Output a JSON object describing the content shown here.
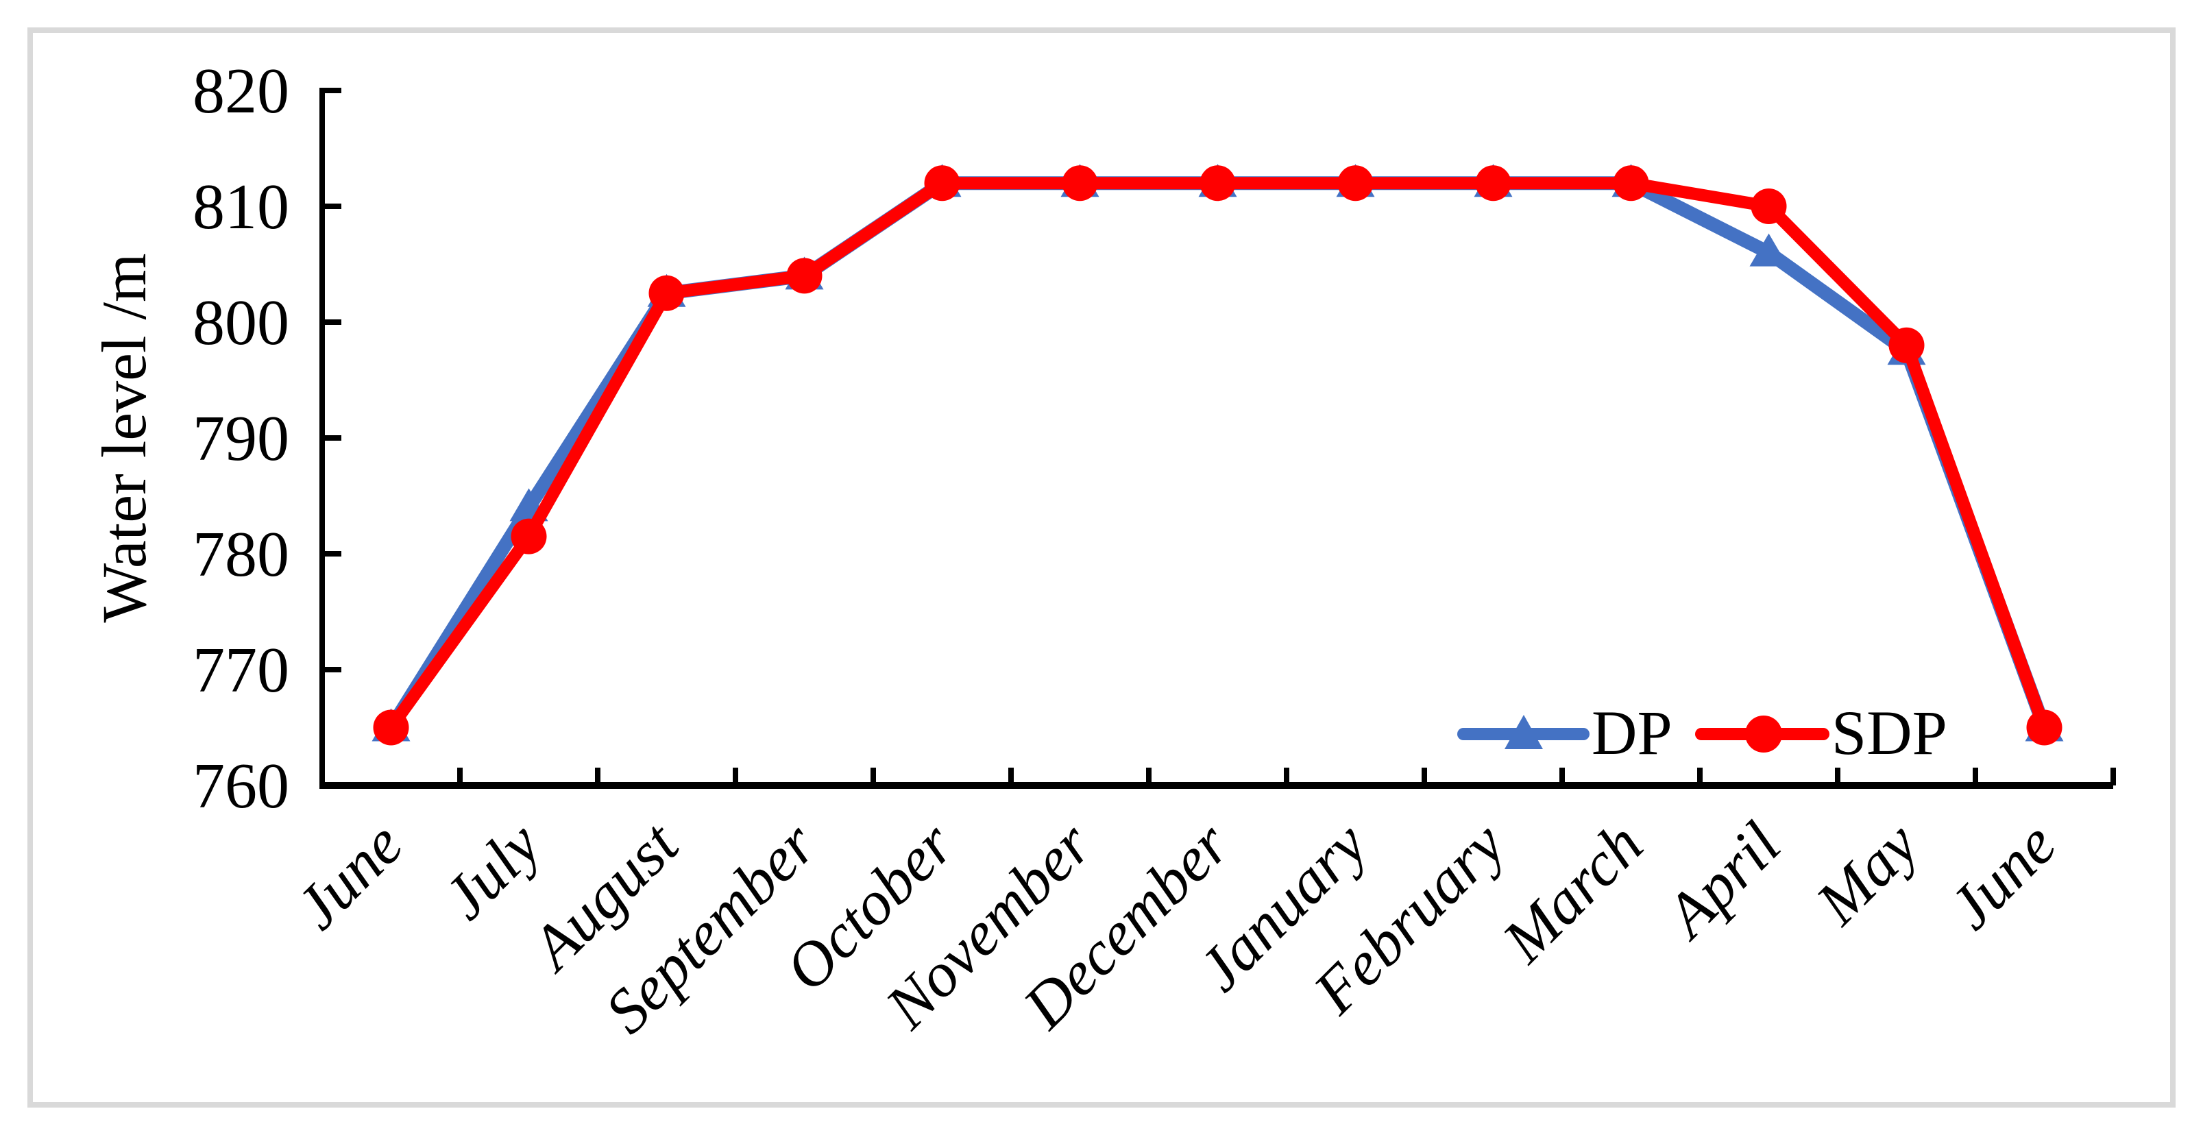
{
  "figure": {
    "background": "#FFFFFF",
    "border_color": "#D9D9D9"
  },
  "chart_data": {
    "type": "line",
    "title": "",
    "xlabel": "",
    "ylabel": "Water level /m",
    "categories": [
      "June",
      "July",
      "August",
      "September",
      "October",
      "November",
      "December",
      "January",
      "February",
      "March",
      "April",
      "May",
      "June"
    ],
    "series": [
      {
        "name": "DP",
        "color": "#4472C4",
        "marker": "triangle",
        "values": [
          765,
          784,
          802.5,
          804,
          812,
          812,
          812,
          812,
          812,
          812,
          806,
          797.5,
          765
        ]
      },
      {
        "name": "SDP",
        "color": "#FF0000",
        "marker": "circle",
        "values": [
          765,
          781.5,
          802.5,
          804,
          812,
          812,
          812,
          812,
          812,
          812,
          810,
          798,
          765
        ]
      }
    ],
    "ylim": [
      760,
      820
    ],
    "ytick_step": 10,
    "yticks": [
      "760",
      "770",
      "780",
      "790",
      "800",
      "810",
      "820"
    ],
    "grid": false,
    "legend_position": "inside-bottom-right"
  }
}
